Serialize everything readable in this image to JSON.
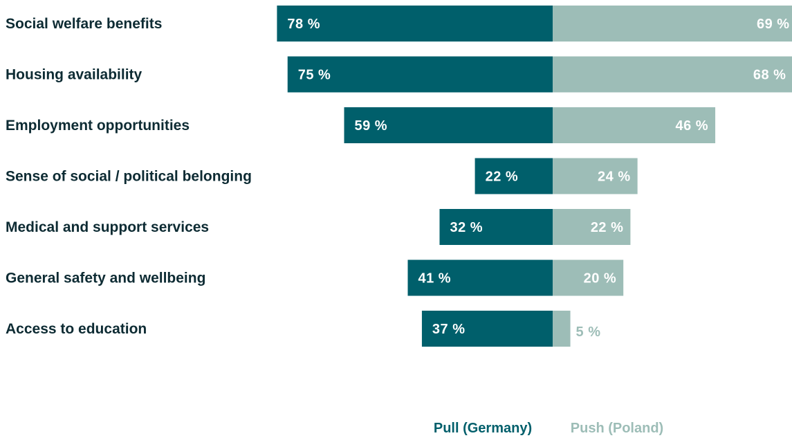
{
  "colors": {
    "pull": "#005f6b",
    "push": "#9dbdb7",
    "label_text": "#0d2b33",
    "value_on_bar": "#ffffff"
  },
  "chart_data": {
    "type": "bar",
    "orientation": "horizontal-diverging",
    "categories": [
      "Social welfare benefits",
      "Housing availability",
      "Employment opportunities",
      "Sense of social / political belonging",
      "Medical and support services",
      "General safety and wellbeing",
      "Access to education"
    ],
    "series": [
      {
        "name": "Pull (Germany)",
        "values": [
          78,
          75,
          59,
          22,
          32,
          41,
          37
        ],
        "labels": [
          "78 %",
          "75 %",
          "59 %",
          "22 %",
          "32 %",
          "41 %",
          "37 %"
        ]
      },
      {
        "name": "Push (Poland)",
        "values": [
          69,
          68,
          46,
          24,
          22,
          20,
          5
        ],
        "labels": [
          "69 %",
          "68 %",
          "46 %",
          "24 %",
          "22 %",
          "20 %",
          "5 %"
        ]
      }
    ],
    "unit": "%",
    "legend_position": "bottom-center",
    "grid": false
  }
}
